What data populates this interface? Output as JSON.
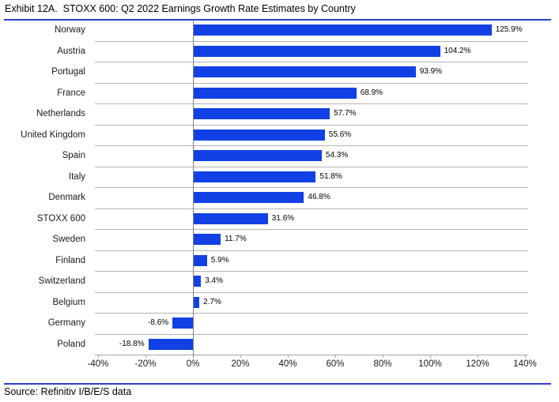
{
  "header": {
    "title": "Exhibit 12A.  STOXX 600: Q2 2022 Earnings Growth Rate Estimates by Country"
  },
  "footer": {
    "source": "Source: Refinitiv I/B/E/S data"
  },
  "colors": {
    "bar": "#1141e4",
    "rule": "#2e41ce",
    "separator": "#b3b3b3",
    "zero_line": "#808080",
    "axis": "#a6a6a6",
    "text": "#000000"
  },
  "chart_data": {
    "type": "bar",
    "orientation": "horizontal",
    "title": "Exhibit 12A. STOXX 600: Q2 2022 Earnings Growth Rate Estimates by Country",
    "categories": [
      "Norway",
      "Austria",
      "Portugal",
      "France",
      "Netherlands",
      "United Kingdom",
      "Spain",
      "Italy",
      "Denmark",
      "STOXX 600",
      "Sweden",
      "Finland",
      "Switzerland",
      "Belgium",
      "Germany",
      "Poland"
    ],
    "values": [
      125.9,
      104.2,
      93.9,
      68.9,
      57.7,
      55.6,
      54.3,
      51.8,
      46.8,
      31.6,
      11.7,
      5.9,
      3.4,
      2.7,
      -8.6,
      -18.8
    ],
    "value_labels": [
      "125.9%",
      "104.2%",
      "93.9%",
      "68.9%",
      "57.7%",
      "55.6%",
      "54.3%",
      "51.8%",
      "46.8%",
      "31.6%",
      "11.7%",
      "5.9%",
      "3.4%",
      "2.7%",
      "-8.6%",
      "-18.8%"
    ],
    "xlabel": "",
    "ylabel": "",
    "xlim": [
      -40,
      140
    ],
    "x_tick_values": [
      -40,
      -20,
      0,
      20,
      40,
      60,
      80,
      100,
      120,
      140
    ],
    "x_tick_labels": [
      "-40%",
      "-20%",
      "0%",
      "20%",
      "40%",
      "60%",
      "80%",
      "100%",
      "120%",
      "140%"
    ],
    "grid": "horizontal-row-separators",
    "legend": "none",
    "source": "Source: Refinitiv I/B/E/S data"
  }
}
